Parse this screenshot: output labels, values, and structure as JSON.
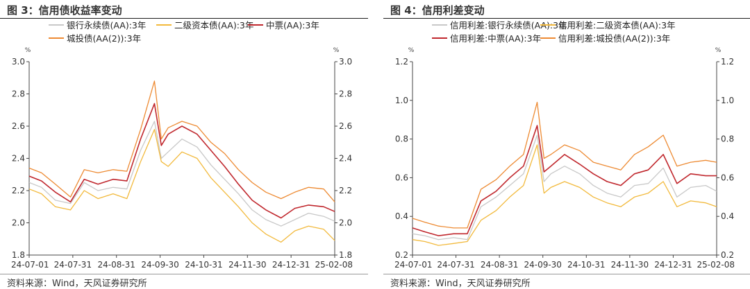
{
  "panels": [
    {
      "title": "图 3：信用债收益率变动",
      "source": "资料来源：Wind，天风证券研究所",
      "chart_data": {
        "type": "line",
        "title": "图 3：信用债收益率变动",
        "unit_left": "%",
        "unit_right": "%",
        "ylim": [
          1.8,
          3.0
        ],
        "yticks": [
          "3.0",
          "2.8",
          "2.6",
          "2.4",
          "2.2",
          "2.0",
          "1.8"
        ],
        "yticks_right": [
          "3.0",
          "2.8",
          "2.6",
          "2.4",
          "2.2",
          "2.0",
          "1.8"
        ],
        "x_tick_labels": [
          "24-07-01",
          "24-07-31",
          "24-08-31",
          "24-09-30",
          "24-10-31",
          "24-11-30",
          "24-12-31",
          "25-02-08"
        ],
        "x_range": [
          "2024-07-01",
          "2025-02-08"
        ],
        "grid": false,
        "legend_position": "top",
        "series": [
          {
            "name": "银行永续债(AA):3年",
            "color": "#c8c8c8",
            "x": [
              "2024-07-01",
              "2024-07-10",
              "2024-07-20",
              "2024-07-31",
              "2024-08-10",
              "2024-08-20",
              "2024-08-31",
              "2024-09-10",
              "2024-09-20",
              "2024-09-30",
              "2024-10-05",
              "2024-10-10",
              "2024-10-20",
              "2024-10-31",
              "2024-11-10",
              "2024-11-20",
              "2024-11-30",
              "2024-12-10",
              "2024-12-20",
              "2024-12-31",
              "2025-01-10",
              "2025-01-20",
              "2025-01-31",
              "2025-02-08"
            ],
            "values": [
              2.25,
              2.22,
              2.14,
              2.12,
              2.25,
              2.2,
              2.22,
              2.21,
              2.45,
              2.63,
              2.4,
              2.44,
              2.52,
              2.47,
              2.36,
              2.27,
              2.18,
              2.08,
              2.02,
              1.98,
              2.02,
              2.06,
              2.04,
              2.01
            ]
          },
          {
            "name": "二级资本债(AA):3年",
            "color": "#f2b93b",
            "x": [
              "2024-07-01",
              "2024-07-10",
              "2024-07-20",
              "2024-07-31",
              "2024-08-10",
              "2024-08-20",
              "2024-08-31",
              "2024-09-10",
              "2024-09-20",
              "2024-09-30",
              "2024-10-05",
              "2024-10-10",
              "2024-10-20",
              "2024-10-31",
              "2024-11-10",
              "2024-11-20",
              "2024-11-30",
              "2024-12-10",
              "2024-12-20",
              "2024-12-31",
              "2025-01-10",
              "2025-01-20",
              "2025-01-31",
              "2025-02-08"
            ],
            "values": [
              2.21,
              2.18,
              2.1,
              2.08,
              2.2,
              2.15,
              2.18,
              2.15,
              2.38,
              2.58,
              2.38,
              2.35,
              2.44,
              2.4,
              2.28,
              2.19,
              2.1,
              2.0,
              1.93,
              1.88,
              1.95,
              1.98,
              1.96,
              1.89
            ]
          },
          {
            "name": "中票(AA):3年",
            "color": "#c0272d",
            "x": [
              "2024-07-01",
              "2024-07-10",
              "2024-07-20",
              "2024-07-31",
              "2024-08-10",
              "2024-08-20",
              "2024-08-31",
              "2024-09-10",
              "2024-09-20",
              "2024-09-30",
              "2024-10-05",
              "2024-10-10",
              "2024-10-20",
              "2024-10-31",
              "2024-11-10",
              "2024-11-20",
              "2024-11-30",
              "2024-12-10",
              "2024-12-20",
              "2024-12-31",
              "2025-01-10",
              "2025-01-20",
              "2025-01-31",
              "2025-02-08"
            ],
            "values": [
              2.29,
              2.26,
              2.19,
              2.13,
              2.27,
              2.24,
              2.27,
              2.26,
              2.52,
              2.74,
              2.48,
              2.55,
              2.6,
              2.55,
              2.45,
              2.35,
              2.24,
              2.14,
              2.08,
              2.03,
              2.09,
              2.11,
              2.1,
              2.07
            ]
          },
          {
            "name": "城投债(AA(2)):3年",
            "color": "#ed8a32",
            "x": [
              "2024-07-01",
              "2024-07-10",
              "2024-07-20",
              "2024-07-31",
              "2024-08-10",
              "2024-08-20",
              "2024-08-31",
              "2024-09-10",
              "2024-09-20",
              "2024-09-30",
              "2024-10-05",
              "2024-10-10",
              "2024-10-20",
              "2024-10-31",
              "2024-11-10",
              "2024-11-20",
              "2024-11-30",
              "2024-12-10",
              "2024-12-20",
              "2024-12-31",
              "2025-01-10",
              "2025-01-20",
              "2025-01-31",
              "2025-02-08"
            ],
            "values": [
              2.34,
              2.31,
              2.24,
              2.16,
              2.33,
              2.31,
              2.33,
              2.32,
              2.58,
              2.88,
              2.52,
              2.59,
              2.63,
              2.6,
              2.5,
              2.43,
              2.33,
              2.25,
              2.19,
              2.15,
              2.19,
              2.22,
              2.21,
              2.13
            ]
          }
        ]
      }
    },
    {
      "title": "图 4：信用利差变动",
      "source": "资料来源：Wind，天风证券研究所",
      "chart_data": {
        "type": "line",
        "title": "图 4：信用利差变动",
        "unit_left": "%",
        "unit_right": "%",
        "ylim": [
          0.2,
          1.2
        ],
        "yticks": [
          "1.2",
          "1.0",
          "0.8",
          "0.6",
          "0.4",
          "0.2"
        ],
        "yticks_right": [
          "1.2",
          "1.0",
          "0.8",
          "0.6",
          "0.4",
          "0.2"
        ],
        "x_tick_labels": [
          "24-07-01",
          "24-07-31",
          "24-08-31",
          "24-09-30",
          "24-10-31",
          "24-11-30",
          "24-12-31",
          "25-02-08"
        ],
        "x_range": [
          "2024-07-01",
          "2025-02-08"
        ],
        "grid": false,
        "legend_position": "top",
        "series": [
          {
            "name": "信用利差:银行永续债(AA):3年",
            "color": "#c8c8c8",
            "x": [
              "2024-07-01",
              "2024-07-10",
              "2024-07-20",
              "2024-07-31",
              "2024-08-10",
              "2024-08-20",
              "2024-08-31",
              "2024-09-10",
              "2024-09-20",
              "2024-09-30",
              "2024-10-05",
              "2024-10-10",
              "2024-10-20",
              "2024-10-31",
              "2024-11-10",
              "2024-11-20",
              "2024-11-30",
              "2024-12-10",
              "2024-12-20",
              "2024-12-31",
              "2025-01-10",
              "2025-01-20",
              "2025-01-31",
              "2025-02-08"
            ],
            "values": [
              0.31,
              0.3,
              0.28,
              0.29,
              0.28,
              0.45,
              0.5,
              0.56,
              0.62,
              0.82,
              0.58,
              0.62,
              0.66,
              0.62,
              0.56,
              0.52,
              0.5,
              0.56,
              0.57,
              0.65,
              0.5,
              0.55,
              0.56,
              0.53
            ]
          },
          {
            "name": "信用利差:二级资本债(AA):3年",
            "color": "#f2b93b",
            "x": [
              "2024-07-01",
              "2024-07-10",
              "2024-07-20",
              "2024-07-31",
              "2024-08-10",
              "2024-08-20",
              "2024-08-31",
              "2024-09-10",
              "2024-09-20",
              "2024-09-30",
              "2024-10-05",
              "2024-10-10",
              "2024-10-20",
              "2024-10-31",
              "2024-11-10",
              "2024-11-20",
              "2024-11-30",
              "2024-12-10",
              "2024-12-20",
              "2024-12-31",
              "2025-01-10",
              "2025-01-20",
              "2025-01-31",
              "2025-02-08"
            ],
            "values": [
              0.28,
              0.27,
              0.25,
              0.26,
              0.27,
              0.38,
              0.43,
              0.5,
              0.56,
              0.77,
              0.52,
              0.55,
              0.58,
              0.55,
              0.5,
              0.47,
              0.45,
              0.5,
              0.52,
              0.58,
              0.45,
              0.48,
              0.47,
              0.45
            ]
          },
          {
            "name": "信用利差:中票(AA):3年",
            "color": "#c0272d",
            "x": [
              "2024-07-01",
              "2024-07-10",
              "2024-07-20",
              "2024-07-31",
              "2024-08-10",
              "2024-08-20",
              "2024-08-31",
              "2024-09-10",
              "2024-09-20",
              "2024-09-30",
              "2024-10-05",
              "2024-10-10",
              "2024-10-20",
              "2024-10-31",
              "2024-11-10",
              "2024-11-20",
              "2024-11-30",
              "2024-12-10",
              "2024-12-20",
              "2024-12-31",
              "2025-01-10",
              "2025-01-20",
              "2025-01-31",
              "2025-02-08"
            ],
            "values": [
              0.34,
              0.32,
              0.3,
              0.31,
              0.31,
              0.48,
              0.53,
              0.6,
              0.66,
              0.87,
              0.63,
              0.66,
              0.72,
              0.67,
              0.62,
              0.58,
              0.56,
              0.62,
              0.64,
              0.72,
              0.57,
              0.62,
              0.61,
              0.61
            ]
          },
          {
            "name": "信用利差:城投债(AA(2)):3年",
            "color": "#ed8a32",
            "x": [
              "2024-07-01",
              "2024-07-10",
              "2024-07-20",
              "2024-07-31",
              "2024-08-10",
              "2024-08-20",
              "2024-08-31",
              "2024-09-10",
              "2024-09-20",
              "2024-09-30",
              "2024-10-05",
              "2024-10-10",
              "2024-10-20",
              "2024-10-31",
              "2024-11-10",
              "2024-11-20",
              "2024-11-30",
              "2024-12-10",
              "2024-12-20",
              "2024-12-31",
              "2025-01-10",
              "2025-01-20",
              "2025-01-31",
              "2025-02-08"
            ],
            "values": [
              0.39,
              0.37,
              0.35,
              0.34,
              0.34,
              0.54,
              0.59,
              0.66,
              0.72,
              0.99,
              0.7,
              0.72,
              0.77,
              0.74,
              0.68,
              0.66,
              0.64,
              0.72,
              0.76,
              0.82,
              0.66,
              0.68,
              0.69,
              0.68
            ]
          }
        ]
      }
    }
  ]
}
